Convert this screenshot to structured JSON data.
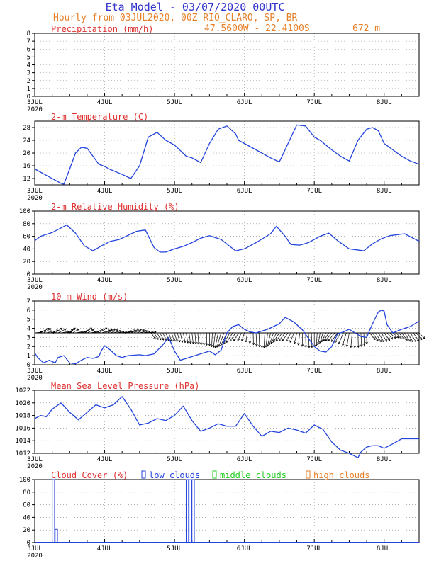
{
  "header": {
    "title": "Eta Model - 03/07/2020 00UTC",
    "subtitle": "Hourly from 03JUL2020, 00Z  RIO_CLARO, SP, BR",
    "coords": "47.5600W - 22.4100S",
    "elevation": "672  m"
  },
  "colors": {
    "title": "#3333cc",
    "header_orange": "#e8802a",
    "panel_title": "#e03030",
    "series": "#2244dd",
    "low_clouds": "#2244dd",
    "middle_clouds": "#22cc22",
    "high_clouds": "#e8802a",
    "grid": "#888888"
  },
  "axis": {
    "x_labels": [
      "3JUL",
      "4JUL",
      "5JUL",
      "6JUL",
      "7JUL",
      "8JUL"
    ],
    "x_year": "2020",
    "x_range_hours": [
      0,
      132
    ]
  },
  "chart_data": [
    {
      "type": "bar",
      "title": "Precipitation (mm/h)",
      "ylim": [
        0,
        8
      ],
      "yticks": [
        0,
        1,
        2,
        3,
        4,
        5,
        6,
        7,
        8
      ],
      "series": [
        {
          "name": "precipitation",
          "x": [
            0,
            132
          ],
          "values": [
            0,
            0
          ]
        }
      ]
    },
    {
      "type": "line",
      "title": "2-m Temperature (C)",
      "ylim": [
        10,
        30
      ],
      "yticks": [
        12,
        16,
        20,
        24,
        28
      ],
      "series": [
        {
          "name": "temperature",
          "x": [
            0,
            3,
            7,
            9,
            10,
            12,
            14,
            16,
            18,
            20,
            22,
            24,
            26,
            30,
            33,
            36,
            39,
            42,
            45,
            48,
            50,
            52,
            54,
            57,
            60,
            63,
            66,
            69,
            70,
            72,
            74,
            76,
            78,
            81,
            84,
            87,
            90,
            93,
            96,
            98,
            100,
            102,
            105,
            108,
            111,
            114,
            116,
            118,
            120,
            123,
            126,
            129,
            132
          ],
          "values": [
            15,
            13.5,
            11.5,
            10.5,
            10.2,
            15,
            20,
            21.8,
            21.5,
            19,
            16.5,
            15.8,
            14.8,
            13.3,
            12,
            16,
            25,
            26.5,
            24,
            22.5,
            20.8,
            19,
            18.5,
            17,
            23,
            27.5,
            28.5,
            26,
            24,
            23,
            22,
            21,
            20,
            18.5,
            17.2,
            23,
            28.8,
            28.5,
            25,
            24,
            22.5,
            21,
            19,
            17.5,
            24,
            27.5,
            28,
            27,
            23,
            21,
            19,
            17.5,
            16.5
          ]
        }
      ]
    },
    {
      "type": "line",
      "title": "2-m Relative Humidity (%)",
      "ylim": [
        0,
        100
      ],
      "yticks": [
        0,
        20,
        40,
        60,
        80,
        100
      ],
      "series": [
        {
          "name": "relative_humidity",
          "x": [
            0,
            2,
            6,
            11,
            14,
            17,
            20,
            23,
            26,
            29,
            35,
            38,
            41,
            43,
            45,
            48,
            51,
            54,
            57,
            60,
            64,
            69,
            72,
            76,
            81,
            83,
            86,
            88,
            91,
            94,
            98,
            101,
            104,
            108,
            113,
            116,
            119,
            122,
            127,
            132
          ],
          "values": [
            53,
            60,
            66,
            78,
            65,
            45,
            37,
            45,
            52,
            55,
            68,
            70,
            42,
            35,
            35,
            40,
            44,
            50,
            57,
            61,
            55,
            37,
            40,
            50,
            64,
            76,
            60,
            47,
            46,
            50,
            60,
            65,
            53,
            40,
            37,
            48,
            56,
            61,
            64,
            52
          ]
        }
      ]
    },
    {
      "type": "line",
      "title": "10-m Wind (m/s)",
      "ylim": [
        0,
        7
      ],
      "yticks": [
        0,
        1,
        2,
        3,
        4,
        5,
        6,
        7
      ],
      "arrows": "wind-direction vectors along the 3.5 m/s line",
      "series": [
        {
          "name": "wind_speed",
          "x": [
            0,
            1,
            3,
            5,
            7,
            8,
            10,
            12,
            14,
            16,
            18,
            20,
            22,
            23,
            24,
            26,
            28,
            30,
            32,
            36,
            38,
            41,
            44,
            46,
            48,
            50,
            53,
            55,
            58,
            60,
            62,
            64,
            66,
            68,
            70,
            72,
            74,
            76,
            78,
            80,
            82,
            84,
            86,
            89,
            92,
            96,
            98,
            100,
            102,
            104,
            106,
            108,
            110,
            112,
            114,
            116,
            118,
            119,
            120,
            121,
            123,
            126,
            129,
            132
          ],
          "values": [
            1.3,
            0.8,
            0.2,
            0.5,
            0.2,
            0.8,
            1.0,
            0.2,
            0.1,
            0.5,
            0.8,
            0.7,
            0.9,
            1.6,
            2.1,
            1.6,
            1.0,
            0.8,
            1.0,
            1.1,
            1.0,
            1.2,
            2.2,
            3.0,
            1.5,
            0.5,
            0.8,
            1.0,
            1.3,
            1.5,
            1.1,
            1.6,
            3.5,
            4.2,
            4.4,
            3.9,
            3.6,
            3.5,
            3.7,
            3.9,
            4.2,
            4.5,
            5.2,
            4.7,
            3.8,
            2.0,
            1.5,
            1.4,
            2.0,
            3.4,
            3.6,
            3.9,
            3.5,
            3.1,
            3.0,
            4.5,
            5.8,
            6.0,
            5.9,
            4.4,
            3.5,
            3.9,
            4.2,
            4.8
          ]
        }
      ]
    },
    {
      "type": "line",
      "title": "Mean Sea Level Pressure (hPa)",
      "ylim": [
        1012,
        1022
      ],
      "yticks": [
        1012,
        1014,
        1016,
        1018,
        1020,
        1022
      ],
      "series": [
        {
          "name": "mslp",
          "x": [
            0,
            2,
            4,
            6,
            9,
            12,
            15,
            18,
            21,
            24,
            27,
            30,
            33,
            36,
            39,
            42,
            45,
            48,
            51,
            54,
            57,
            60,
            63,
            66,
            69,
            72,
            75,
            78,
            81,
            84,
            87,
            90,
            93,
            96,
            99,
            102,
            105,
            108,
            111,
            112,
            114,
            116,
            118,
            120,
            123,
            126,
            129,
            132
          ],
          "values": [
            1017.5,
            1018,
            1017.8,
            1019,
            1020,
            1018.5,
            1017.3,
            1018.5,
            1019.7,
            1019.2,
            1019.7,
            1021,
            1019,
            1016.5,
            1016.8,
            1017.5,
            1017.2,
            1018,
            1019.5,
            1017.2,
            1015.5,
            1016,
            1016.7,
            1016.3,
            1016.3,
            1018.3,
            1016.3,
            1014.7,
            1015.5,
            1015.3,
            1016,
            1015.7,
            1015.2,
            1016.5,
            1015.8,
            1013.8,
            1012.5,
            1012,
            1011.3,
            1012.2,
            1013,
            1013.2,
            1013.2,
            1012.8,
            1013.5,
            1014.3,
            1014.3,
            1014.3
          ]
        }
      ]
    },
    {
      "type": "bar",
      "title": "Cloud Cover (%)",
      "ylim": [
        0,
        100
      ],
      "yticks": [
        0,
        20,
        40,
        60,
        80,
        100
      ],
      "legend": [
        "low clouds",
        "middle clouds",
        "high clouds"
      ],
      "series": [
        {
          "name": "low clouds",
          "x": [
            6,
            7,
            52,
            53,
            54
          ],
          "values": [
            100,
            21,
            100,
            100,
            100
          ]
        },
        {
          "name": "middle clouds",
          "x": [],
          "values": []
        },
        {
          "name": "high clouds",
          "x": [],
          "values": []
        }
      ]
    }
  ]
}
